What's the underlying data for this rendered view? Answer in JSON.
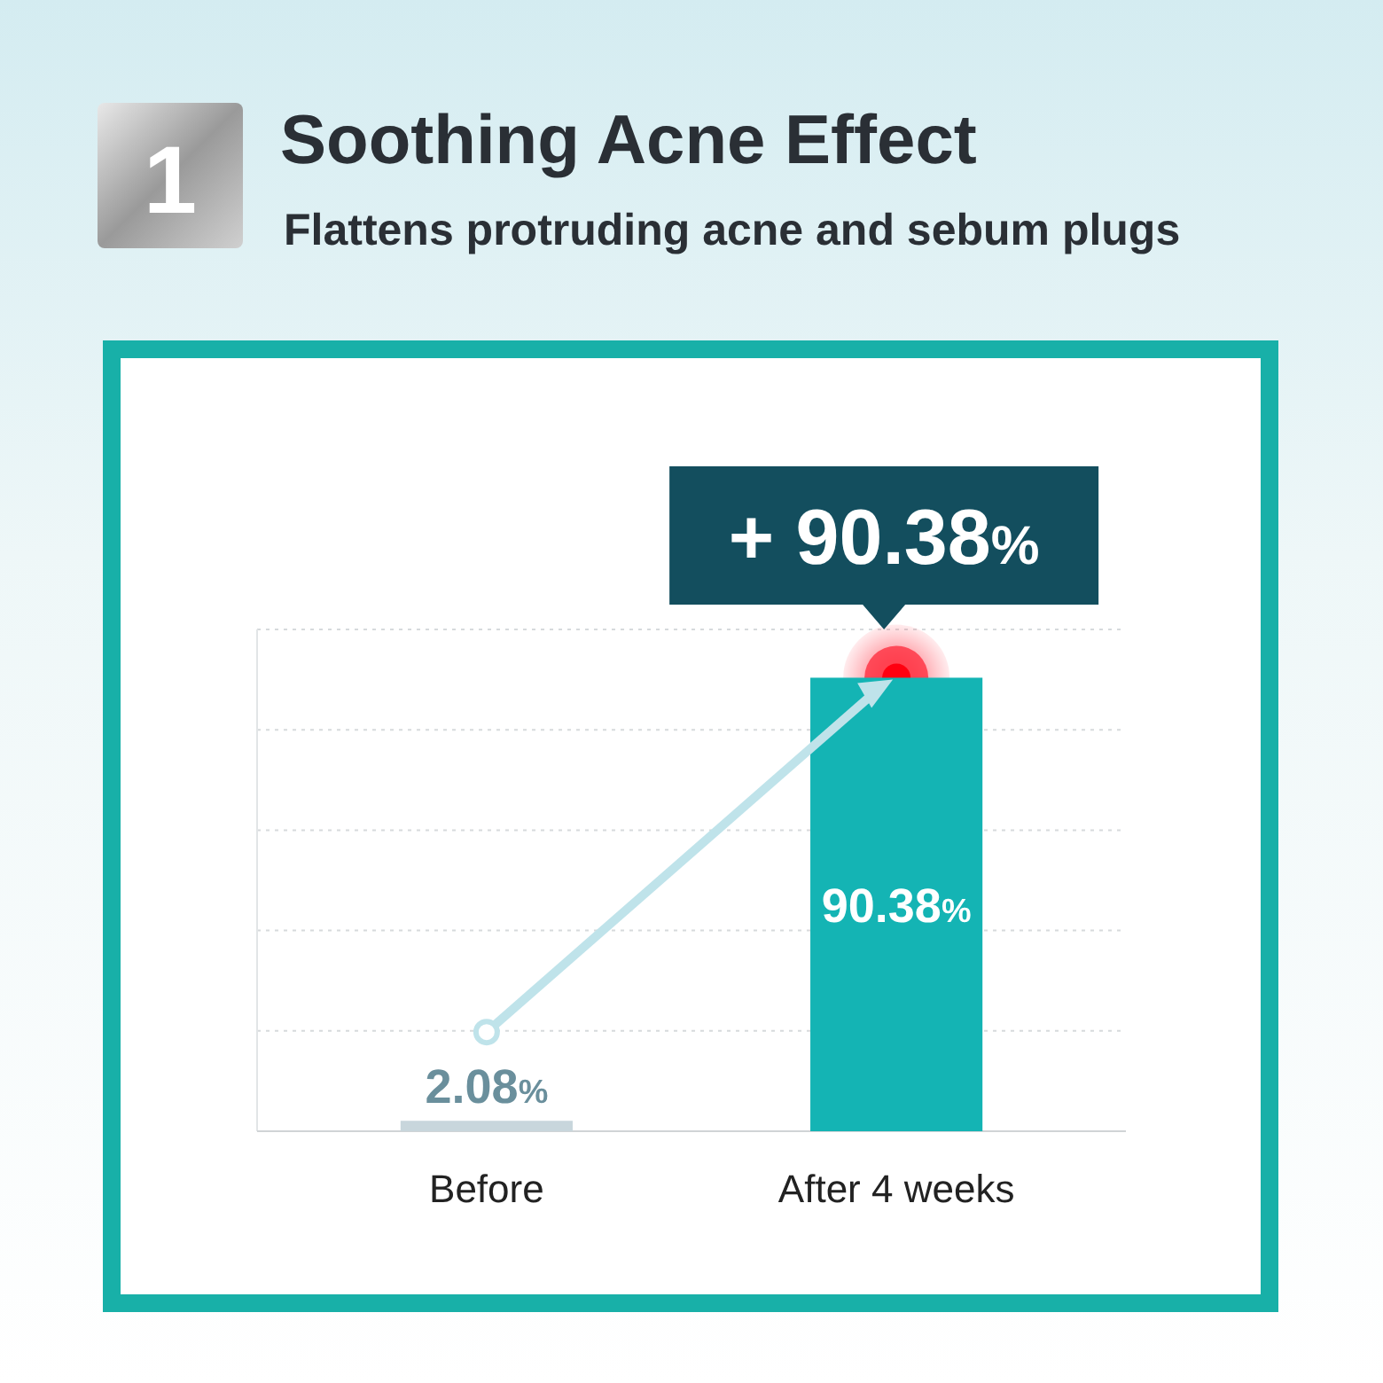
{
  "chart_data": {
    "type": "bar",
    "title": "Soothing Acne Effect",
    "subtitle": "Flattens protruding acne and sebum plugs",
    "categories": [
      "Before",
      "After 4 weeks"
    ],
    "values": [
      2.08,
      90.38
    ],
    "colors": [
      "#c8d6dc",
      "#14b4b4"
    ],
    "value_labels": [
      "2.08%",
      "90.38%"
    ],
    "annotations": [
      "1",
      "+ 90.38%"
    ],
    "ylim": [
      0,
      100
    ],
    "yticks": [
      {
        "value": 20,
        "label": null
      },
      {
        "value": 40,
        "label": null
      },
      {
        "value": 60,
        "label": null
      },
      {
        "value": 80,
        "label": null
      },
      {
        "value": 100,
        "label": null
      }
    ],
    "grid": true
  }
}
